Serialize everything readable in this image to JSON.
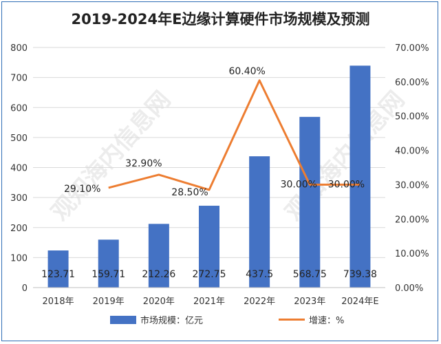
{
  "chart_data": {
    "type": "bar",
    "title": "2019-2024年E边缘计算硬件市场规模及预测",
    "categories": [
      "2018年",
      "2019年",
      "2020年",
      "2021年",
      "2022年",
      "2023年",
      "2024年E"
    ],
    "series": [
      {
        "name": "市场规模：亿元",
        "type": "bar",
        "axis": "left",
        "values": [
          123.71,
          159.71,
          212.26,
          272.75,
          437.5,
          568.75,
          739.38
        ],
        "labels": [
          "123.71",
          "159.71",
          "212.26",
          "272.75",
          "437.5",
          "568.75",
          "739.38"
        ],
        "color": "#4472c4"
      },
      {
        "name": "增速：%",
        "type": "line",
        "axis": "right",
        "values": [
          null,
          29.1,
          32.9,
          28.5,
          60.4,
          30.0,
          30.0
        ],
        "labels": [
          "",
          "29.10%",
          "32.90%",
          "28.50%",
          "60.40%",
          "30.00%",
          "30.00%"
        ],
        "color": "#ed7d31"
      }
    ],
    "y_left": {
      "min": 0,
      "max": 800,
      "ticks": [
        "0",
        "100",
        "200",
        "300",
        "400",
        "500",
        "600",
        "700",
        "800"
      ]
    },
    "y_right": {
      "min": 0,
      "max": 70,
      "ticks": [
        "0.00%",
        "10.00%",
        "20.00%",
        "30.00%",
        "40.00%",
        "50.00%",
        "60.00%",
        "70.00%"
      ]
    },
    "grid": true,
    "legend_position": "bottom"
  },
  "legend": {
    "bar_label": "市场规模：亿元",
    "line_label": "增速：%"
  },
  "watermark": {
    "text": "观知海内信息网",
    "subtext": "WWW.DONGFANGQB.COM"
  }
}
